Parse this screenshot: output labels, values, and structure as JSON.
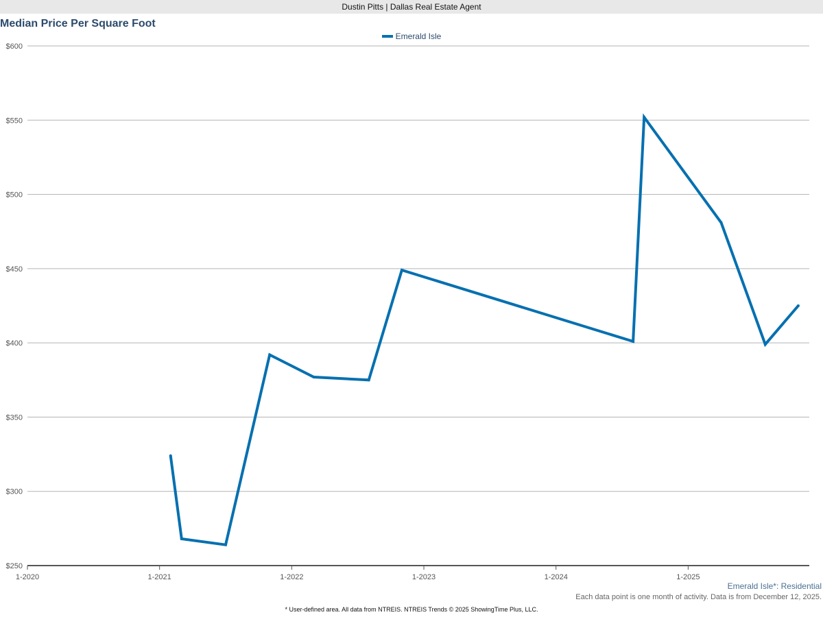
{
  "header": {
    "banner": "Dustin Pitts | Dallas Real Estate Agent"
  },
  "footer": {
    "area_label": "Emerald Isle*: Residential",
    "note": "Each data point is one month of activity. Data is from December 12, 2025.",
    "credit": "* User-defined area. All data from NTREIS. NTREIS Trends © 2025 ShowingTime Plus, LLC."
  },
  "chart_data": {
    "type": "line",
    "title": "Median Price Per Square Foot",
    "xlabel": "",
    "ylabel": "",
    "ylim": [
      250,
      600
    ],
    "xlim": [
      "2020-01",
      "2025-12"
    ],
    "yticks": [
      250,
      300,
      350,
      400,
      450,
      500,
      550,
      600
    ],
    "ytick_labels": [
      "$250",
      "$300",
      "$350",
      "$400",
      "$450",
      "$500",
      "$550",
      "$600"
    ],
    "xticks": [
      "2020-01",
      "2021-01",
      "2022-01",
      "2023-01",
      "2024-01",
      "2025-01"
    ],
    "xtick_labels": [
      "1-2020",
      "1-2021",
      "1-2022",
      "1-2023",
      "1-2024",
      "1-2025"
    ],
    "grid": true,
    "legend_position": "top-center",
    "series": [
      {
        "name": "Emerald Isle",
        "color": "#0570b0",
        "points": [
          {
            "x": "2021-02",
            "y": 324
          },
          {
            "x": "2021-03",
            "y": 268
          },
          {
            "x": "2021-07",
            "y": 264
          },
          {
            "x": "2021-11",
            "y": 392
          },
          {
            "x": "2022-03",
            "y": 377
          },
          {
            "x": "2022-08",
            "y": 375
          },
          {
            "x": "2022-11",
            "y": 449
          },
          {
            "x": "2024-08",
            "y": 401
          },
          {
            "x": "2024-09",
            "y": 552
          },
          {
            "x": "2025-04",
            "y": 481
          },
          {
            "x": "2025-08",
            "y": 399
          },
          {
            "x": "2025-11",
            "y": 425
          }
        ]
      }
    ]
  }
}
